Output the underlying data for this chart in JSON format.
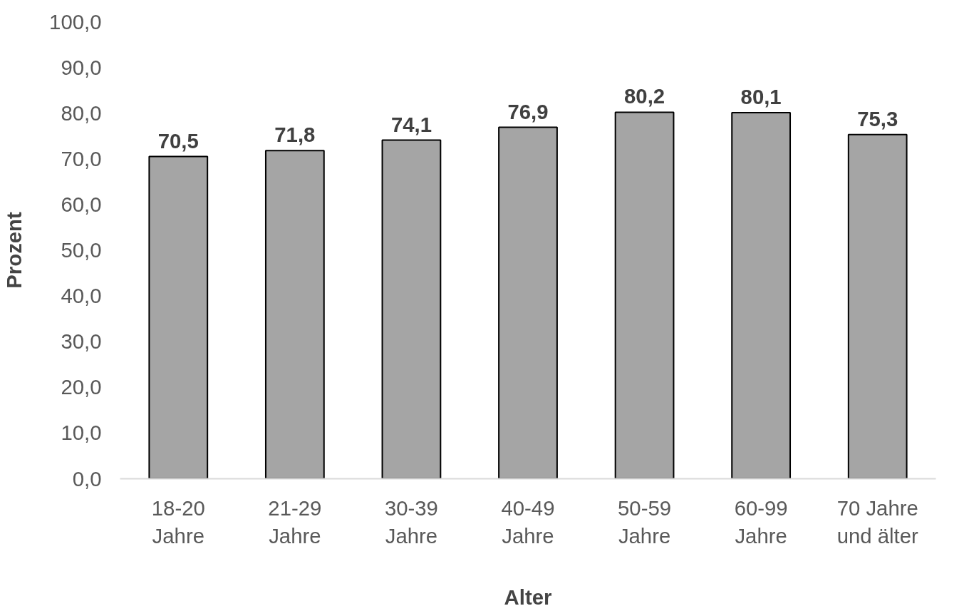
{
  "chart_data": {
    "type": "bar",
    "xlabel": "Alter",
    "ylabel": "Prozent",
    "categories": [
      "18-20\nJahre",
      "21-29\nJahre",
      "30-39\nJahre",
      "40-49\nJahre",
      "50-59\nJahre",
      "60-99\nJahre",
      "70 Jahre\nund älter"
    ],
    "values": [
      70.5,
      71.8,
      74.1,
      76.9,
      80.2,
      80.1,
      75.3
    ],
    "value_labels": [
      "70,5",
      "71,8",
      "74,1",
      "76,9",
      "80,2",
      "80,1",
      "75,3"
    ],
    "color": "#a5a5a5",
    "ylim": [
      0,
      100
    ],
    "yticks": [
      {
        "value": 0,
        "label": "0,0"
      },
      {
        "value": 10,
        "label": "10,0"
      },
      {
        "value": 20,
        "label": "20,0"
      },
      {
        "value": 30,
        "label": "30,0"
      },
      {
        "value": 40,
        "label": "40,0"
      },
      {
        "value": 50,
        "label": "50,0"
      },
      {
        "value": 60,
        "label": "60,0"
      },
      {
        "value": 70,
        "label": "70,0"
      },
      {
        "value": 80,
        "label": "80,0"
      },
      {
        "value": 90,
        "label": "90,0"
      },
      {
        "value": 100,
        "label": "100,0"
      }
    ],
    "grid": false
  }
}
